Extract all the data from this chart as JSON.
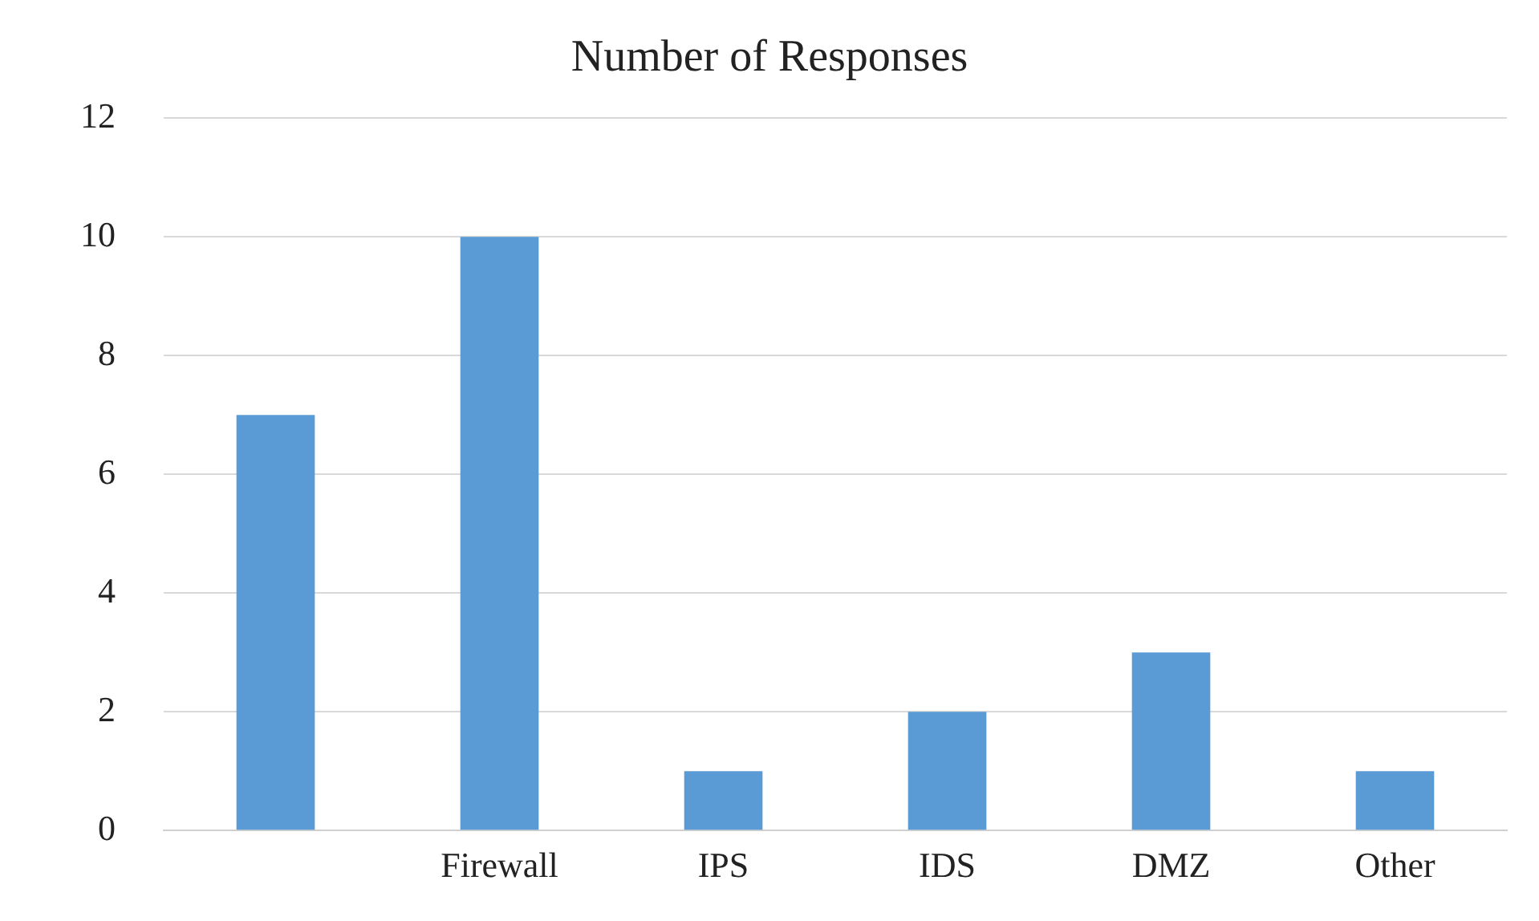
{
  "chart_data": {
    "type": "bar",
    "title": "Number of Responses",
    "categories": [
      null,
      "Firewall",
      "IPS",
      "IDS",
      "DMZ",
      "Other"
    ],
    "values": [
      7,
      10,
      1,
      2,
      3,
      1
    ],
    "color": "#5b9bd5",
    "ylim": [
      0,
      12
    ],
    "yticks": [
      0,
      2,
      4,
      6,
      8,
      10,
      12
    ],
    "grid": "y",
    "legend": false
  }
}
